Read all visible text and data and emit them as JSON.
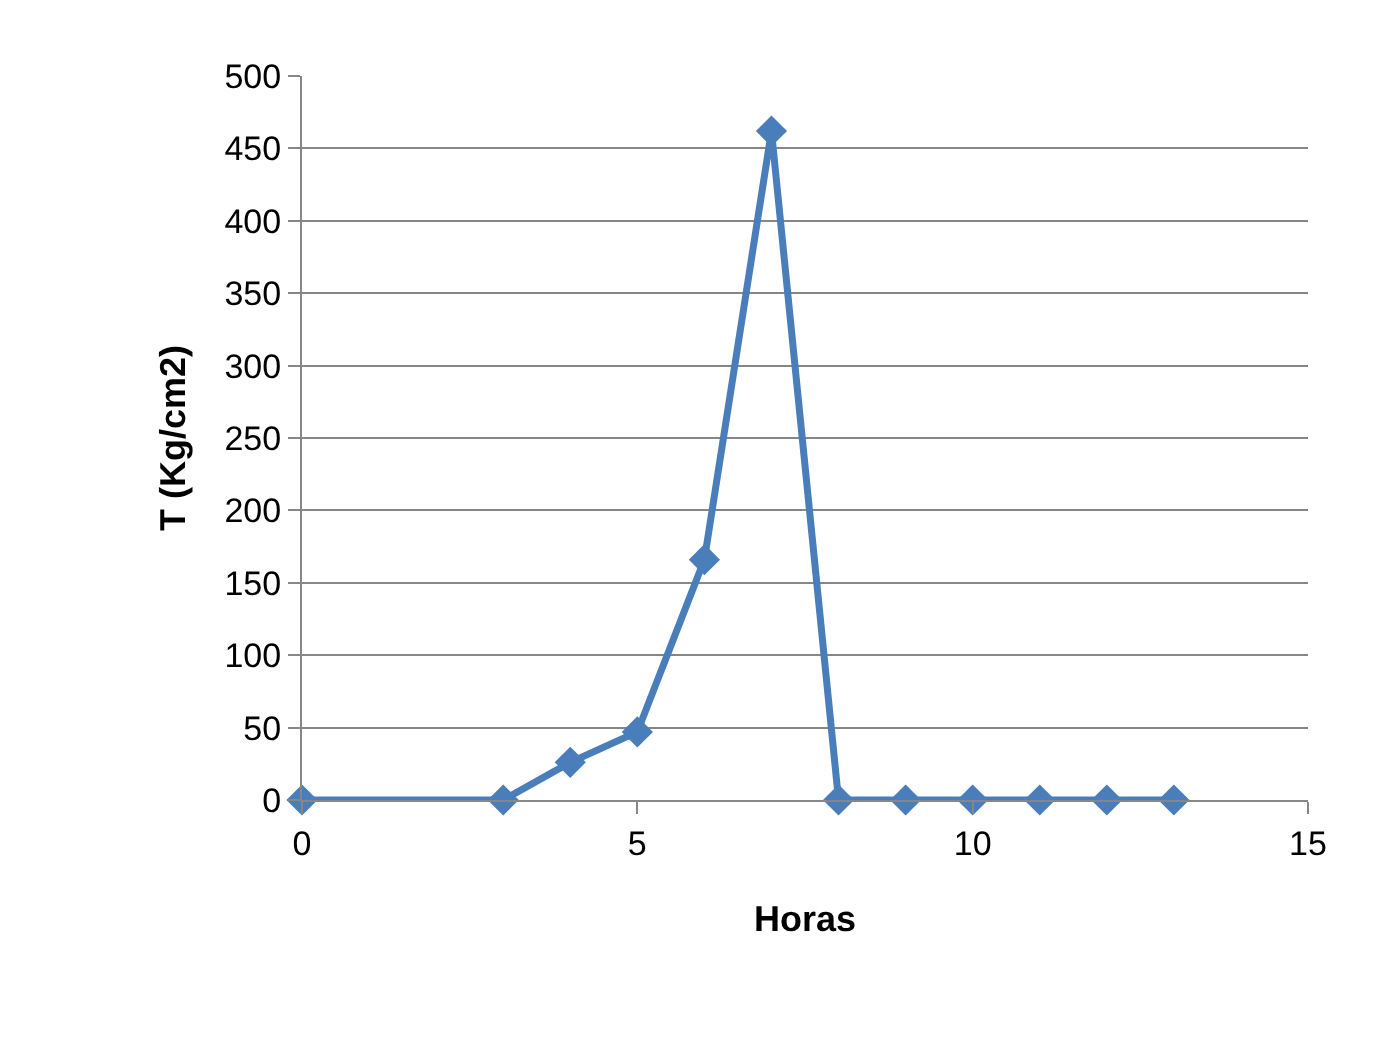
{
  "chart_data": {
    "type": "line",
    "xlabel": "Horas",
    "ylabel": "T (Kg/cm2)",
    "x": [
      0,
      3,
      4,
      5,
      6,
      7,
      8,
      9,
      10,
      11,
      12,
      13
    ],
    "series": [
      {
        "color": "#4a7ebb",
        "values": [
          0,
          0,
          26,
          47,
          166,
          462,
          0,
          0,
          0,
          0,
          0,
          0
        ]
      }
    ],
    "xlim": [
      0,
      15
    ],
    "xticks": [
      0,
      5,
      10,
      15
    ],
    "ylim": [
      0,
      500
    ],
    "yticks": [
      0,
      50,
      100,
      150,
      200,
      250,
      300,
      350,
      400,
      450,
      500
    ],
    "grid": "y",
    "marker": "diamond",
    "line_style": "solid"
  }
}
